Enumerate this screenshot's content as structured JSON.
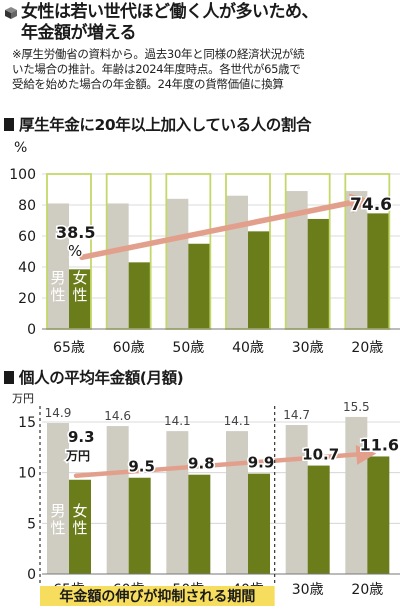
{
  "header": {
    "title_line1": "女性は若い世代ほど働く人が多いため、",
    "title_line2": "年金額が増える",
    "note_line1": "※厚生労働省の資料から。過去30年と同様の経済状況が続",
    "note_line2": "いた場合の推計。年齢は2024年度時点。各世代が65歳で",
    "note_line3": "受給を始めた場合の年金額。24年度の貨幣価値に換算"
  },
  "colors": {
    "male": "#cfcdc2",
    "female": "#6a7d1a",
    "frame": "#c3d86a",
    "arrow": "#e2a08c",
    "highlight": "#f7dd5e"
  },
  "chart_data": [
    {
      "type": "bar",
      "section_title": "厚生年金に20年以上加入している人の割合",
      "unit": "%",
      "categories": [
        "65歳",
        "60歳",
        "50歳",
        "40歳",
        "30歳",
        "20歳"
      ],
      "ylim": [
        0,
        100
      ],
      "yticks": [
        "0",
        "20",
        "40",
        "60",
        "80",
        "100"
      ],
      "grid": true,
      "series": [
        {
          "name": "男性",
          "values": [
            81,
            81,
            84,
            86,
            89,
            89
          ]
        },
        {
          "name": "女性",
          "values": [
            38.5,
            43,
            55,
            63,
            71,
            74.6
          ]
        }
      ],
      "labels": {
        "first": "38.5",
        "first_unit": "%",
        "last": "74.6"
      }
    },
    {
      "type": "bar",
      "section_title": "個人の平均年金額(月額)",
      "unit": "万円",
      "categories": [
        "65歳",
        "60歳",
        "50歳",
        "40歳",
        "30歳",
        "20歳"
      ],
      "ylim": [
        0,
        15
      ],
      "yticks": [
        "0",
        "5",
        "10",
        "15"
      ],
      "grid": true,
      "series": [
        {
          "name": "男性",
          "values": [
            14.9,
            14.6,
            14.1,
            14.1,
            14.7,
            15.5
          ],
          "labels": [
            "14.9",
            "14.6",
            "14.1",
            "14.1",
            "14.7",
            "15.5"
          ]
        },
        {
          "name": "女性",
          "values": [
            9.3,
            9.5,
            9.8,
            9.9,
            10.7,
            11.6
          ],
          "labels": [
            "9.3",
            "9.5",
            "9.8",
            "9.9",
            "10.7",
            "11.6"
          ]
        }
      ],
      "first_unit": "万円",
      "annotation": "年金額の伸びが抑制される期間"
    }
  ]
}
